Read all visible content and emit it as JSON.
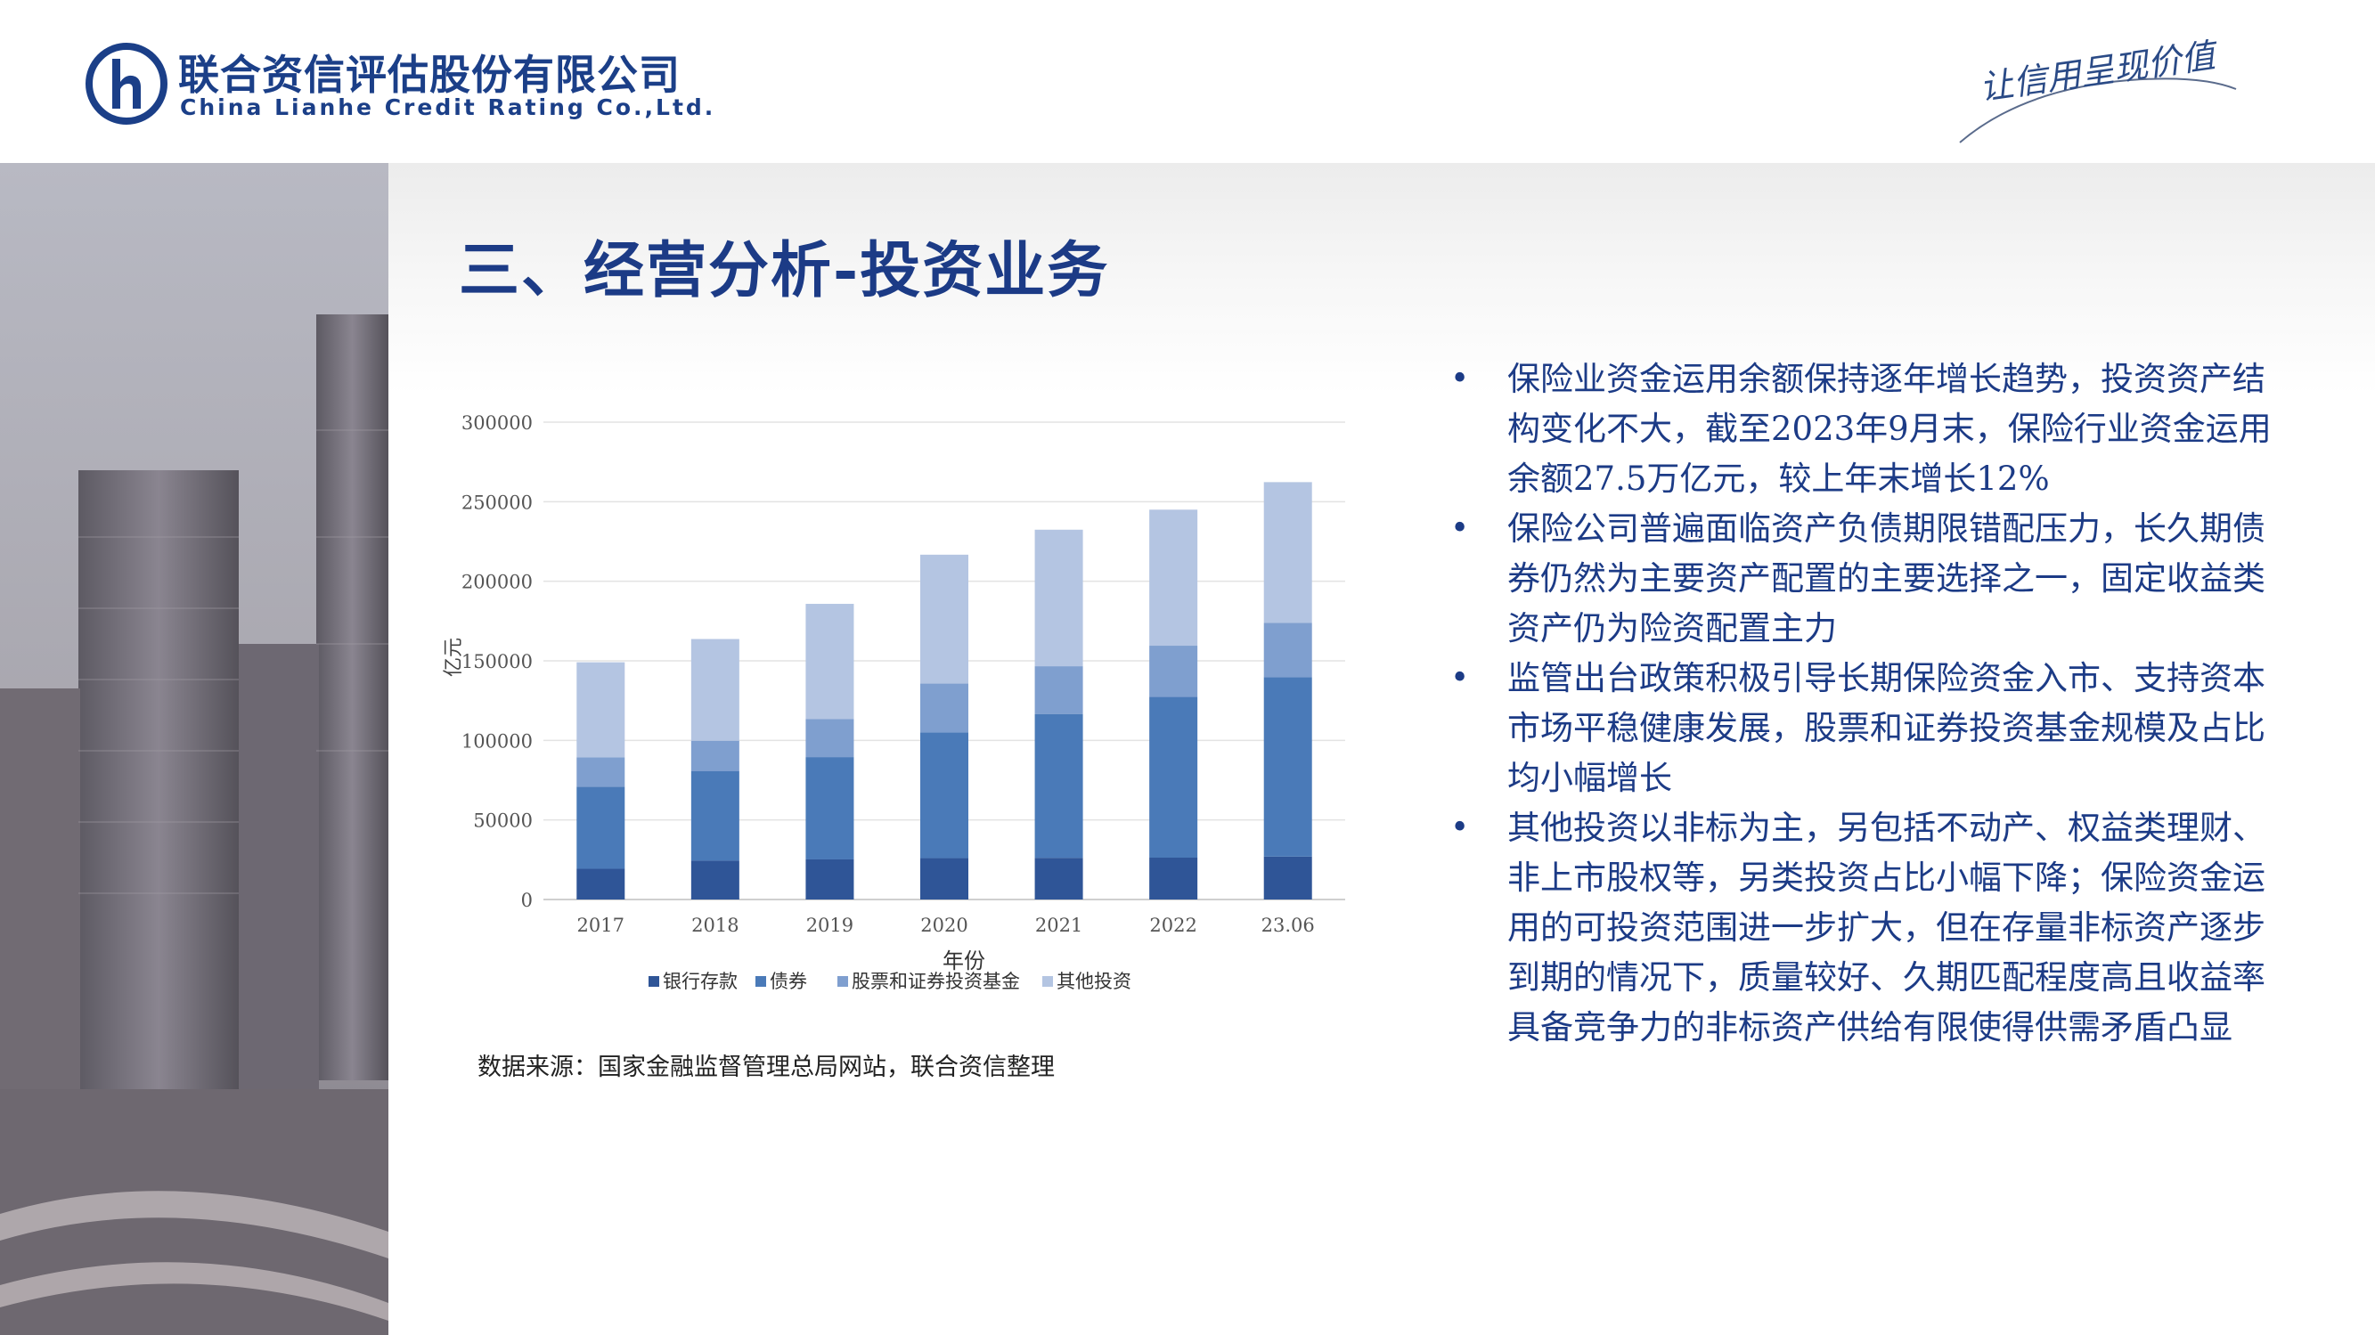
{
  "header": {
    "company_cn": "联合资信评估股份有限公司",
    "company_en": "China Lianhe Credit Rating Co.,Ltd.",
    "slogan": "让信用呈现价值",
    "brand_color": "#1b3f88"
  },
  "title": "三、经营分析-投资业务",
  "chart_data": {
    "type": "bar",
    "stacked": true,
    "categories": [
      "2017",
      "2018",
      "2019",
      "2020",
      "2021",
      "2022",
      "23.06"
    ],
    "series": [
      {
        "name": "银行存款",
        "color": "#2f5597",
        "values": [
          19300,
          24400,
          25200,
          26000,
          26200,
          26300,
          27000
        ]
      },
      {
        "name": "债券",
        "color": "#4a7ab8",
        "values": [
          51600,
          56400,
          64300,
          79000,
          90400,
          101000,
          112800
        ]
      },
      {
        "name": "股票和证券投资基金",
        "color": "#7f9fcf",
        "values": [
          18400,
          19000,
          24000,
          30700,
          30000,
          32200,
          34000
        ]
      },
      {
        "name": "其他投资",
        "color": "#b4c5e2",
        "values": [
          59800,
          63900,
          72300,
          81000,
          85800,
          85500,
          88500
        ]
      }
    ],
    "xlabel": "年份",
    "ylabel": "亿元",
    "ylim": [
      0,
      300000
    ],
    "yticks": [
      "0",
      "50000",
      "100000",
      "150000",
      "200000",
      "250000",
      "300000"
    ],
    "grid": true,
    "legend_position": "bottom"
  },
  "source": "数据来源：国家金融监督管理总局网站，联合资信整理",
  "bullets": [
    "保险业资金运用余额保持逐年增长趋势，投资资产结构变化不大，截至2023年9月末，保险行业资金运用余额27.5万亿元，较上年末增长12%",
    "保险公司普遍面临资产负债期限错配压力，长久期债券仍然为主要资产配置的主要选择之一，固定收益类资产仍为险资配置主力",
    "监管出台政策积极引导长期保险资金入市、支持资本市场平稳健康发展，股票和证券投资基金规模及占比均小幅增长",
    "其他投资以非标为主，另包括不动产、权益类理财、非上市股权等，另类投资占比小幅下降；保险资金运用的可投资范围进一步扩大，但在存量非标资产逐步到期的情况下，质量较好、久期匹配程度高且收益率具备竞争力的非标资产供给有限使得供需矛盾凸显"
  ]
}
